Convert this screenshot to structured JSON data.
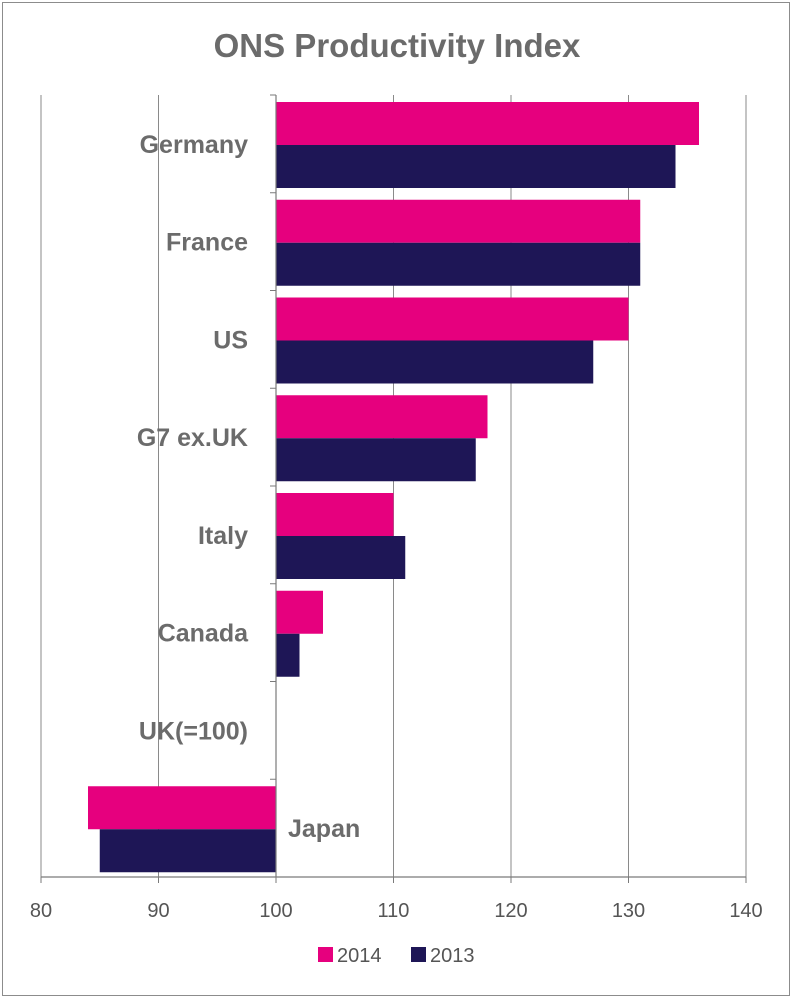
{
  "chart_data": {
    "type": "bar",
    "orientation": "horizontal",
    "title": "ONS Productivity Index",
    "categories": [
      "Germany",
      "France",
      "US",
      "G7 ex.UK",
      "Italy",
      "Canada",
      "UK(=100)",
      "Japan"
    ],
    "series": [
      {
        "name": "2014",
        "color": "#e6007e",
        "values": [
          136,
          131,
          130,
          118,
          110,
          104,
          100,
          84
        ]
      },
      {
        "name": "2013",
        "color": "#1e1656",
        "values": [
          134,
          131,
          127,
          117,
          111,
          102,
          100,
          85
        ]
      }
    ],
    "baseline": 100,
    "xlim": [
      80,
      140
    ],
    "xticks": [
      "80",
      "90",
      "100",
      "110",
      "120",
      "130",
      "140"
    ],
    "grid": true,
    "legend_position": "bottom"
  }
}
